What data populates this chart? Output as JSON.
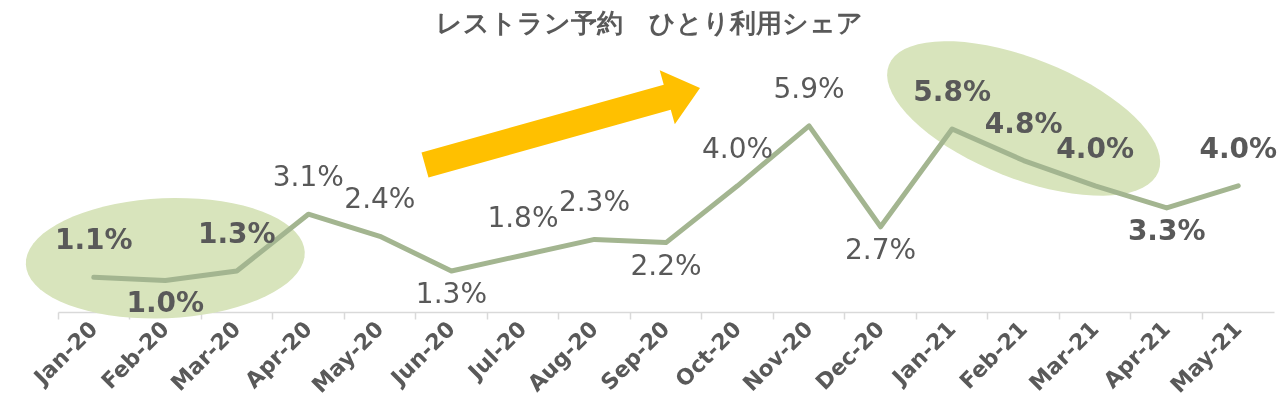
{
  "chart_data": {
    "type": "line",
    "title": "レストラン予約　ひとり利用シェア",
    "categories": [
      "Jan-20",
      "Feb-20",
      "Mar-20",
      "Apr-20",
      "May-20",
      "Jun-20",
      "Jul-20",
      "Aug-20",
      "Sep-20",
      "Oct-20",
      "Nov-20",
      "Dec-20",
      "Jan-21",
      "Feb-21",
      "Mar-21",
      "Apr-21",
      "May-21"
    ],
    "series": [
      {
        "color": "#a3b590",
        "values": [
          1.1,
          1.0,
          1.3,
          3.1,
          2.4,
          1.3,
          1.8,
          2.3,
          2.2,
          4.0,
          5.9,
          2.7,
          5.8,
          4.8,
          4.0,
          3.3,
          4.0
        ],
        "value_labels": [
          "1.1%",
          "1.0%",
          "1.3%",
          "3.1%",
          "2.4%",
          "1.3%",
          "1.8%",
          "2.3%",
          "2.2%",
          "4.0%",
          "5.9%",
          "2.7%",
          "5.8%",
          "4.8%",
          "4.0%",
          "3.3%",
          "4.0%"
        ]
      }
    ],
    "tick_labels": "x",
    "grid": false
  }
}
